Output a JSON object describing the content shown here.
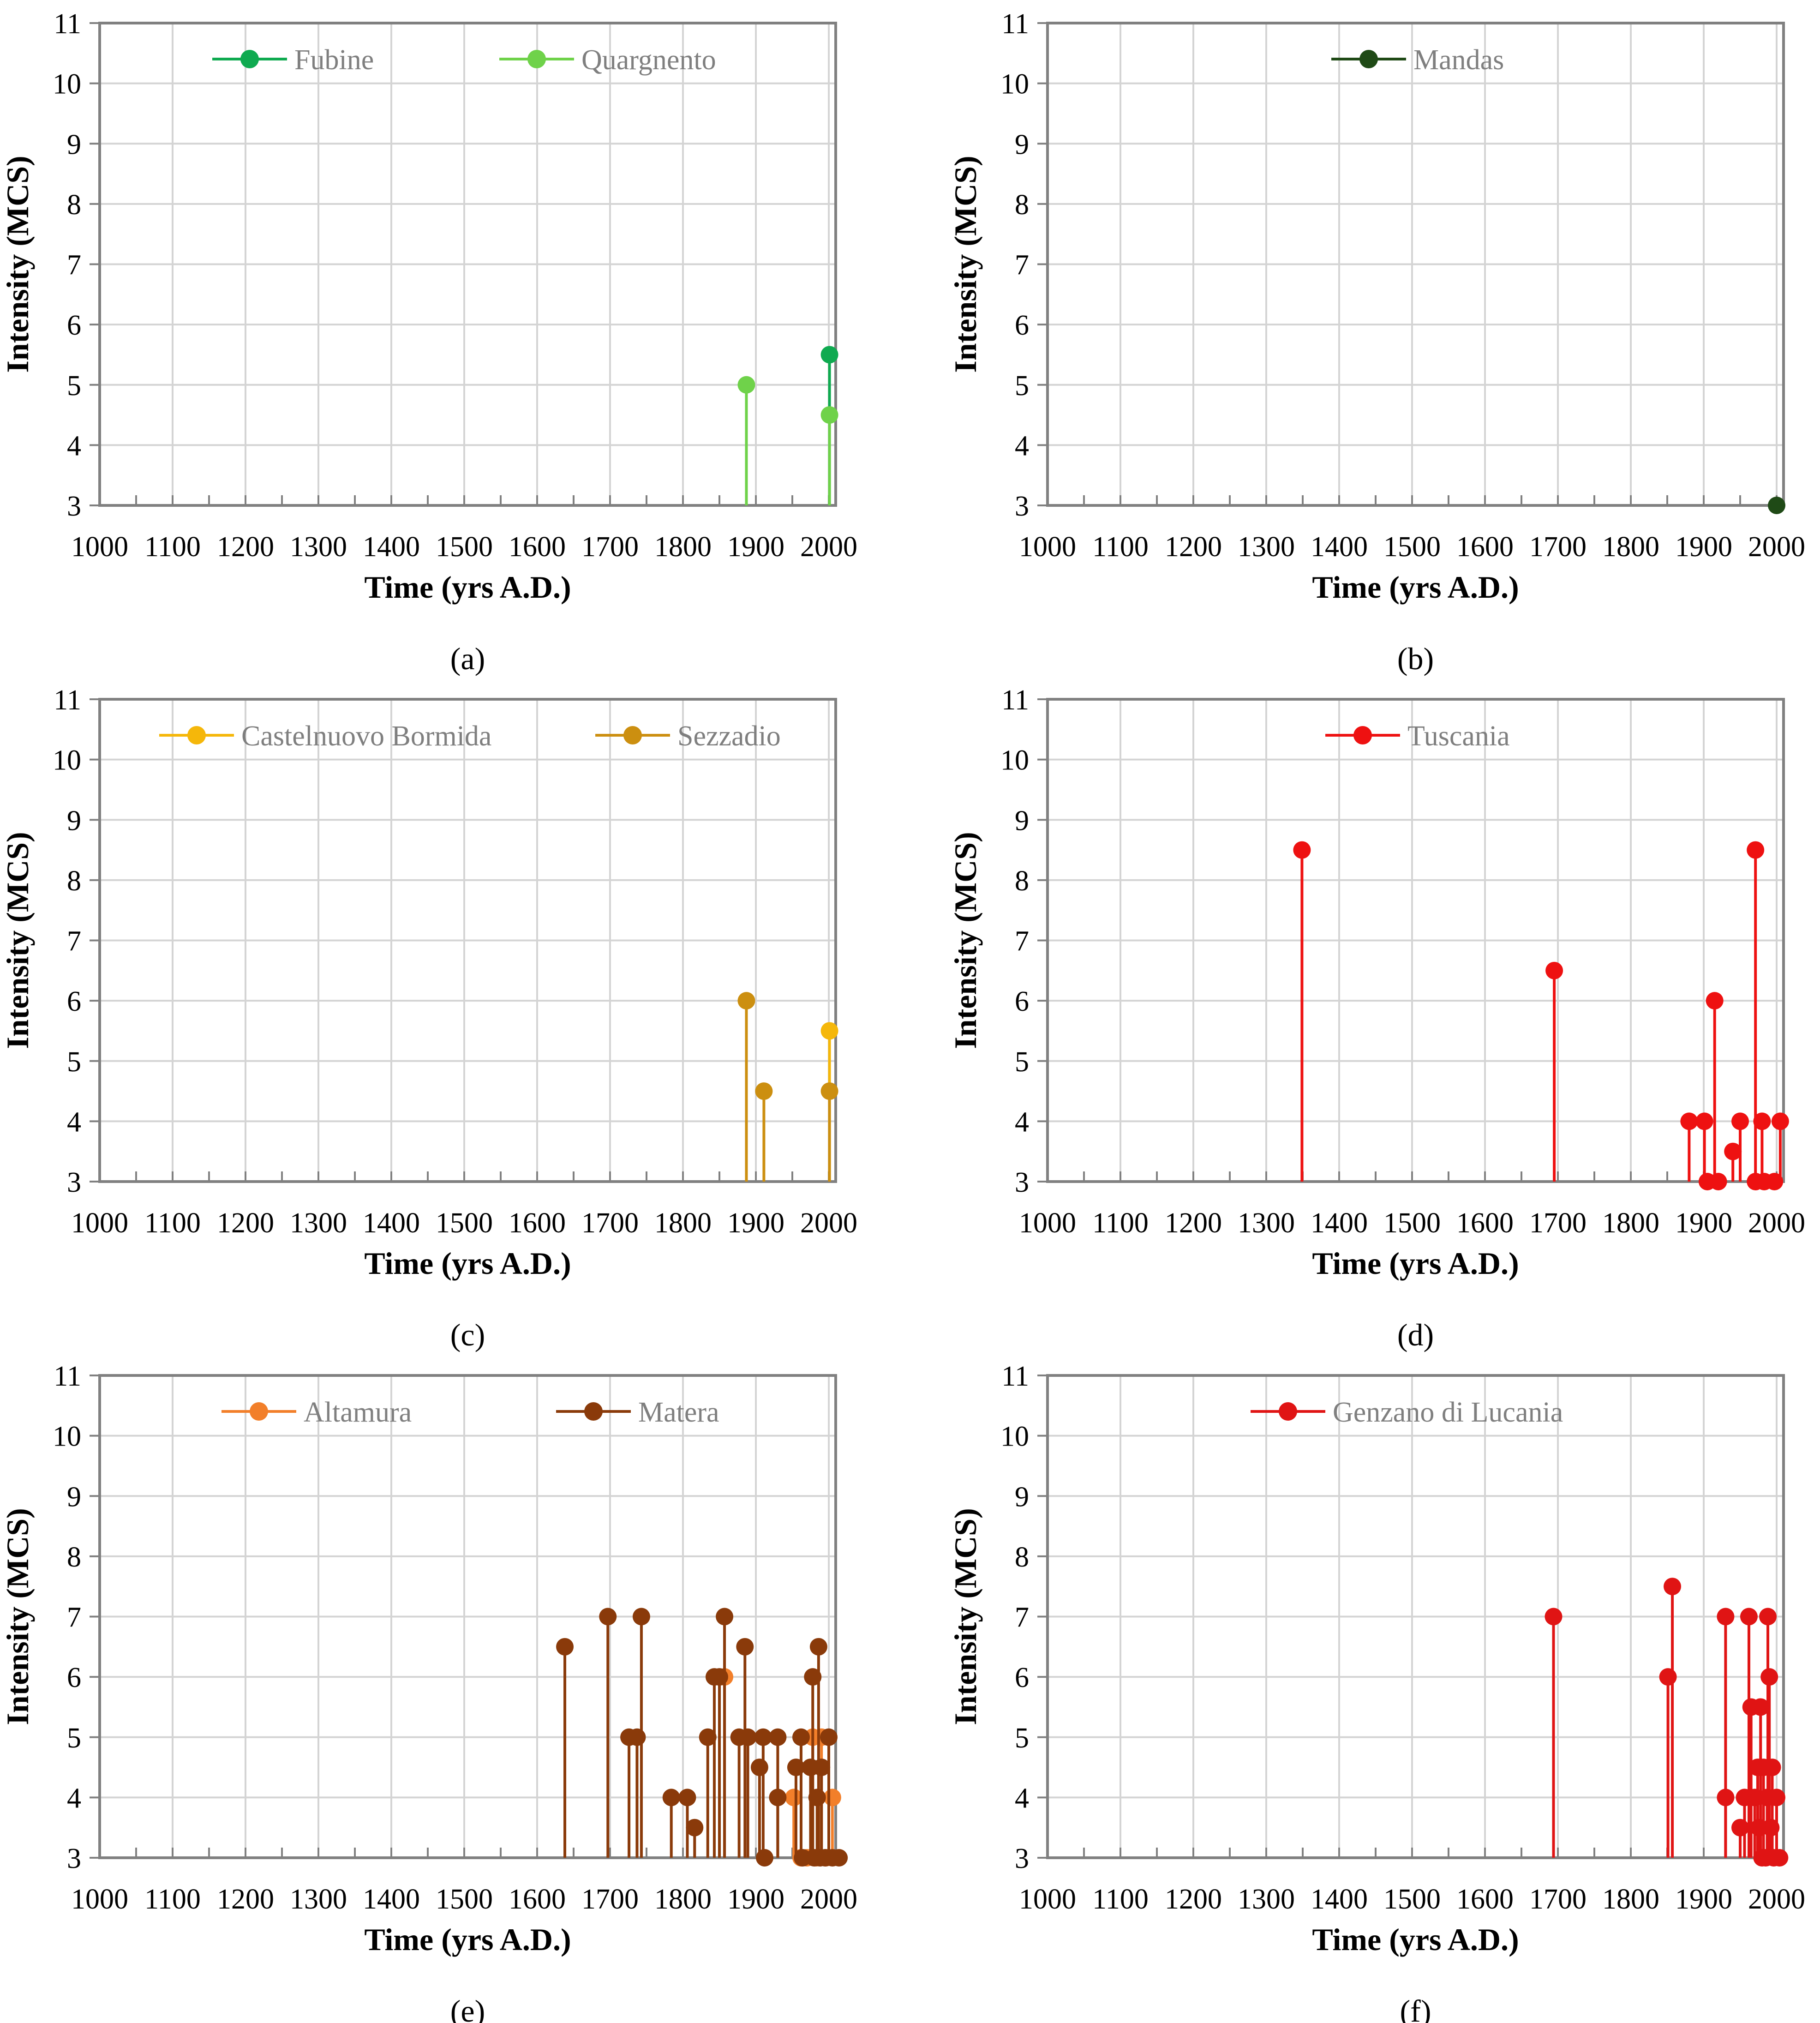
{
  "chart_data": [
    {
      "panel": "a",
      "caption": "(a)",
      "type": "stem",
      "xlabel": "Time (yrs A.D.)",
      "ylabel": "Intensity (MCS)",
      "xlim": [
        1000,
        2000
      ],
      "ylim": [
        3,
        11
      ],
      "xticks": [
        1000,
        1100,
        1200,
        1300,
        1400,
        1500,
        1600,
        1700,
        1800,
        1900,
        2000
      ],
      "yticks": [
        3,
        4,
        5,
        6,
        7,
        8,
        9,
        10,
        11
      ],
      "grid": true,
      "legend_position": "top",
      "series": [
        {
          "name": "Fubine",
          "color": "#0faa50",
          "x": [
            2001
          ],
          "y": [
            5.5
          ]
        },
        {
          "name": "Quargnento",
          "color": "#6fd24a",
          "x": [
            1887,
            2001
          ],
          "y": [
            5.0,
            4.5
          ]
        }
      ]
    },
    {
      "panel": "b",
      "caption": "(b)",
      "type": "stem",
      "xlabel": "Time (yrs A.D.)",
      "ylabel": "Intensity (MCS)",
      "xlim": [
        1000,
        2000
      ],
      "ylim": [
        3,
        11
      ],
      "xticks": [
        1000,
        1100,
        1200,
        1300,
        1400,
        1500,
        1600,
        1700,
        1800,
        1900,
        2000
      ],
      "yticks": [
        3,
        4,
        5,
        6,
        7,
        8,
        9,
        10,
        11
      ],
      "grid": true,
      "legend_position": "top",
      "series": [
        {
          "name": "Mandas",
          "color": "#1f4a16",
          "x": [
            2000
          ],
          "y": [
            3.0
          ]
        }
      ]
    },
    {
      "panel": "c",
      "caption": "(c)",
      "type": "stem",
      "xlabel": "Time (yrs A.D.)",
      "ylabel": "Intensity (MCS)",
      "xlim": [
        1000,
        2000
      ],
      "ylim": [
        3,
        11
      ],
      "xticks": [
        1000,
        1100,
        1200,
        1300,
        1400,
        1500,
        1600,
        1700,
        1800,
        1900,
        2000
      ],
      "yticks": [
        3,
        4,
        5,
        6,
        7,
        8,
        9,
        10,
        11
      ],
      "grid": true,
      "legend_position": "top",
      "series": [
        {
          "name": "Castelnuovo Bormida",
          "color": "#f5b70a",
          "x": [
            2001
          ],
          "y": [
            5.5
          ]
        },
        {
          "name": "Sezzadio",
          "color": "#cc8f10",
          "x": [
            1887,
            1911,
            2001
          ],
          "y": [
            6.0,
            4.5,
            4.5
          ]
        }
      ]
    },
    {
      "panel": "d",
      "caption": "(d)",
      "type": "stem",
      "xlabel": "Time (yrs A.D.)",
      "ylabel": "Intensity (MCS)",
      "xlim": [
        1000,
        2000
      ],
      "ylim": [
        3,
        11
      ],
      "xticks": [
        1000,
        1100,
        1200,
        1300,
        1400,
        1500,
        1600,
        1700,
        1800,
        1900,
        2000
      ],
      "yticks": [
        3,
        4,
        5,
        6,
        7,
        8,
        9,
        10,
        11
      ],
      "grid": true,
      "legend_position": "top",
      "series": [
        {
          "name": "Tuscania",
          "color": "#ee1111",
          "x": [
            1349,
            1695,
            1880,
            1901,
            1905,
            1915,
            1920,
            1940,
            1950,
            1971,
            1971,
            1980,
            1983,
            1997,
            2005
          ],
          "y": [
            8.5,
            6.5,
            4.0,
            4.0,
            3.0,
            6.0,
            3.0,
            3.5,
            4.0,
            3.0,
            8.5,
            4.0,
            3.0,
            3.0,
            4.0
          ]
        }
      ]
    },
    {
      "panel": "e",
      "caption": "(e)",
      "type": "stem",
      "xlabel": "Time (yrs A.D.)",
      "ylabel": "Intensity (MCS)",
      "xlim": [
        1000,
        2000
      ],
      "ylim": [
        3,
        11
      ],
      "xticks": [
        1000,
        1100,
        1200,
        1300,
        1400,
        1500,
        1600,
        1700,
        1800,
        1900,
        2000
      ],
      "yticks": [
        3,
        4,
        5,
        6,
        7,
        8,
        9,
        10,
        11
      ],
      "grid": true,
      "legend_position": "top",
      "series": [
        {
          "name": "Altamura",
          "color": "#f27f2a",
          "x": [
            1857,
            1952,
            1962,
            1970,
            1978,
            1983,
            1990,
            1996,
            2005
          ],
          "y": [
            6.0,
            4.0,
            3.0,
            3.0,
            5.0,
            3.0,
            5.0,
            3.0,
            4.0
          ]
        },
        {
          "name": "Matera",
          "color": "#8a3a0a",
          "x": [
            1638,
            1697,
            1726,
            1737,
            1743,
            1784,
            1806,
            1816,
            1834,
            1843,
            1850,
            1857,
            1877,
            1885,
            1889,
            1905,
            1910,
            1912,
            1930,
            1930,
            1955,
            1962,
            1964,
            1975,
            1978,
            1980,
            1984,
            1986,
            1988,
            1990,
            1995,
            2000,
            2005,
            2014
          ],
          "y": [
            6.5,
            7.0,
            5.0,
            5.0,
            7.0,
            4.0,
            4.0,
            3.5,
            5.0,
            6.0,
            6.0,
            7.0,
            5.0,
            6.5,
            5.0,
            4.5,
            5.0,
            3.0,
            5.0,
            4.0,
            4.5,
            5.0,
            3.0,
            4.5,
            6.0,
            3.0,
            4.0,
            6.5,
            3.0,
            4.5,
            3.0,
            5.0,
            3.0,
            3.0
          ]
        }
      ]
    },
    {
      "panel": "f",
      "caption": "(f)",
      "type": "stem",
      "xlabel": "Time (yrs A.D.)",
      "ylabel": "Intensity (MCS)",
      "xlim": [
        1000,
        2000
      ],
      "ylim": [
        3,
        11
      ],
      "xticks": [
        1000,
        1100,
        1200,
        1300,
        1400,
        1500,
        1600,
        1700,
        1800,
        1900,
        2000
      ],
      "yticks": [
        3,
        4,
        5,
        6,
        7,
        8,
        9,
        10,
        11
      ],
      "grid": true,
      "legend_position": "top",
      "series": [
        {
          "name": "Genzano di Lucania",
          "color": "#e01414",
          "x": [
            1694,
            1851,
            1857,
            1930,
            1930,
            1950,
            1956,
            1962,
            1965,
            1970,
            1974,
            1976,
            1978,
            1980,
            1982,
            1985,
            1987,
            1988,
            1990,
            1992,
            1994,
            1996,
            2000,
            2004
          ],
          "y": [
            7.0,
            6.0,
            7.5,
            4.0,
            7.0,
            3.5,
            4.0,
            7.0,
            5.5,
            4.0,
            4.5,
            3.5,
            5.5,
            3.0,
            4.5,
            3.0,
            4.0,
            7.0,
            6.0,
            3.5,
            4.5,
            3.0,
            4.0,
            3.0
          ]
        }
      ]
    }
  ]
}
